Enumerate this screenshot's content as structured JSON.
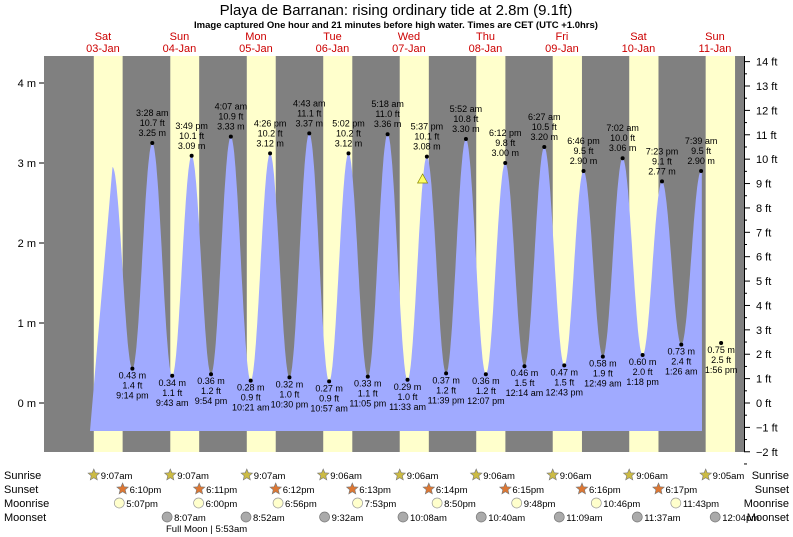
{
  "chart_data": {
    "type": "area",
    "title": "Playa de Barranan: rising  ordinary tide at 2.8m (9.1ft)",
    "subtitle": "Image captured One hour and 21 minutes before high water. Times are CET (UTC +1.0hrs)",
    "days": [
      {
        "dow": "Sat",
        "date": "03-Jan"
      },
      {
        "dow": "Sun",
        "date": "04-Jan"
      },
      {
        "dow": "Mon",
        "date": "05-Jan"
      },
      {
        "dow": "Tue",
        "date": "06-Jan"
      },
      {
        "dow": "Wed",
        "date": "07-Jan"
      },
      {
        "dow": "Thu",
        "date": "08-Jan"
      },
      {
        "dow": "Fri",
        "date": "09-Jan"
      },
      {
        "dow": "Sat",
        "date": "10-Jan"
      },
      {
        "dow": "Sun",
        "date": "11-Jan"
      }
    ],
    "y_left_range_m": [
      -0.6,
      4.4
    ],
    "y_left_ticks": [
      {
        "v": 0,
        "label": "0 m"
      },
      {
        "v": 1,
        "label": "1 m"
      },
      {
        "v": 2,
        "label": "2 m"
      },
      {
        "v": 3,
        "label": "3 m"
      },
      {
        "v": 4,
        "label": "4 m"
      }
    ],
    "y_right_ticks_ft": [
      {
        "v": -2,
        "label": "−2 ft"
      },
      {
        "v": -1,
        "label": "−1 ft"
      },
      {
        "v": 0,
        "label": "0 ft"
      },
      {
        "v": 1,
        "label": "1 ft"
      },
      {
        "v": 2,
        "label": "2 ft"
      },
      {
        "v": 3,
        "label": "3 ft"
      },
      {
        "v": 4,
        "label": "4 ft"
      },
      {
        "v": 5,
        "label": "5 ft"
      },
      {
        "v": 6,
        "label": "6 ft"
      },
      {
        "v": 7,
        "label": "7 ft"
      },
      {
        "v": 8,
        "label": "8 ft"
      },
      {
        "v": 9,
        "label": "9 ft"
      },
      {
        "v": 10,
        "label": "10 ft"
      },
      {
        "v": 11,
        "label": "11 ft"
      },
      {
        "v": 12,
        "label": "12 ft"
      },
      {
        "v": 13,
        "label": "13 ft"
      },
      {
        "v": 14,
        "label": "14 ft"
      }
    ],
    "tides": [
      {
        "kind": "low",
        "day": 0,
        "hours": 21.23,
        "m": 0.43,
        "time": "9:14 pm",
        "m_text": "0.43 m",
        "ft_text": "1.4 ft"
      },
      {
        "kind": "high",
        "day": 1,
        "hours": 3.47,
        "m": 3.25,
        "time": "3:28 am",
        "m_text": "3.25 m",
        "ft_text": "10.7 ft"
      },
      {
        "kind": "low",
        "day": 1,
        "hours": 9.72,
        "m": 0.34,
        "time": "9:43 am",
        "m_text": "0.34 m",
        "ft_text": "1.1 ft"
      },
      {
        "kind": "high",
        "day": 1,
        "hours": 15.82,
        "m": 3.09,
        "time": "3:49 pm",
        "m_text": "3.09 m",
        "ft_text": "10.1 ft"
      },
      {
        "kind": "low",
        "day": 1,
        "hours": 21.9,
        "m": 0.36,
        "time": "9:54 pm",
        "m_text": "0.36 m",
        "ft_text": "1.2 ft"
      },
      {
        "kind": "high",
        "day": 2,
        "hours": 4.12,
        "m": 3.33,
        "time": "4:07 am",
        "m_text": "3.33 m",
        "ft_text": "10.9 ft"
      },
      {
        "kind": "low",
        "day": 2,
        "hours": 10.35,
        "m": 0.28,
        "time": "10:21 am",
        "m_text": "0.28 m",
        "ft_text": "0.9 ft"
      },
      {
        "kind": "high",
        "day": 2,
        "hours": 16.43,
        "m": 3.12,
        "time": "4:26 pm",
        "m_text": "3.12 m",
        "ft_text": "10.2 ft"
      },
      {
        "kind": "low",
        "day": 2,
        "hours": 22.5,
        "m": 0.32,
        "time": "10:30 pm",
        "m_text": "0.32 m",
        "ft_text": "1.0 ft"
      },
      {
        "kind": "high",
        "day": 3,
        "hours": 4.72,
        "m": 3.37,
        "time": "4:43 am",
        "m_text": "3.37 m",
        "ft_text": "11.1 ft"
      },
      {
        "kind": "low",
        "day": 3,
        "hours": 10.95,
        "m": 0.27,
        "time": "10:57 am",
        "m_text": "0.27 m",
        "ft_text": "0.9 ft"
      },
      {
        "kind": "high",
        "day": 3,
        "hours": 17.03,
        "m": 3.12,
        "time": "5:02 pm",
        "m_text": "3.12 m",
        "ft_text": "10.2 ft"
      },
      {
        "kind": "low",
        "day": 3,
        "hours": 23.08,
        "m": 0.33,
        "time": "11:05 pm",
        "m_text": "0.33 m",
        "ft_text": "1.1 ft"
      },
      {
        "kind": "high",
        "day": 4,
        "hours": 5.3,
        "m": 3.36,
        "time": "5:18 am",
        "m_text": "3.36 m",
        "ft_text": "11.0 ft"
      },
      {
        "kind": "low",
        "day": 4,
        "hours": 11.55,
        "m": 0.29,
        "time": "11:33 am",
        "m_text": "0.29 m",
        "ft_text": "1.0 ft"
      },
      {
        "kind": "high",
        "day": 4,
        "hours": 17.62,
        "m": 3.08,
        "time": "5:37 pm",
        "m_text": "3.08 m",
        "ft_text": "10.1 ft"
      },
      {
        "kind": "low",
        "day": 4,
        "hours": 23.65,
        "m": 0.37,
        "time": "11:39 pm",
        "m_text": "0.37 m",
        "ft_text": "1.2 ft"
      },
      {
        "kind": "high",
        "day": 5,
        "hours": 5.87,
        "m": 3.3,
        "time": "5:52 am",
        "m_text": "3.30 m",
        "ft_text": "10.8 ft"
      },
      {
        "kind": "low",
        "day": 5,
        "hours": 12.12,
        "m": 0.36,
        "time": "12:07 pm",
        "m_text": "0.36 m",
        "ft_text": "1.2 ft"
      },
      {
        "kind": "high",
        "day": 5,
        "hours": 18.2,
        "m": 3.0,
        "time": "6:12 pm",
        "m_text": "3.00 m",
        "ft_text": "9.8 ft"
      },
      {
        "kind": "low",
        "day": 6,
        "hours": 0.23,
        "m": 0.46,
        "time": "12:14 am",
        "m_text": "0.46 m",
        "ft_text": "1.5 ft"
      },
      {
        "kind": "high",
        "day": 6,
        "hours": 6.45,
        "m": 3.2,
        "time": "6:27 am",
        "m_text": "3.20 m",
        "ft_text": "10.5 ft"
      },
      {
        "kind": "low",
        "day": 6,
        "hours": 12.72,
        "m": 0.47,
        "time": "12:43 pm",
        "m_text": "0.47 m",
        "ft_text": "1.5 ft"
      },
      {
        "kind": "high",
        "day": 6,
        "hours": 18.77,
        "m": 2.9,
        "time": "6:46 pm",
        "m_text": "2.90 m",
        "ft_text": "9.5 ft"
      },
      {
        "kind": "low",
        "day": 7,
        "hours": 0.82,
        "m": 0.58,
        "time": "12:49 am",
        "m_text": "0.58 m",
        "ft_text": "1.9 ft"
      },
      {
        "kind": "high",
        "day": 7,
        "hours": 7.03,
        "m": 3.06,
        "time": "7:02 am",
        "m_text": "3.06 m",
        "ft_text": "10.0 ft"
      },
      {
        "kind": "low",
        "day": 7,
        "hours": 13.3,
        "m": 0.6,
        "time": "1:18 pm",
        "m_text": "0.60 m",
        "ft_text": "2.0 ft"
      },
      {
        "kind": "high",
        "day": 7,
        "hours": 19.38,
        "m": 2.77,
        "time": "7:23 pm",
        "m_text": "2.77 m",
        "ft_text": "9.1 ft"
      },
      {
        "kind": "low",
        "day": 8,
        "hours": 1.43,
        "m": 0.73,
        "time": "1:26 am",
        "m_text": "0.73 m",
        "ft_text": "2.4 ft"
      },
      {
        "kind": "high",
        "day": 8,
        "hours": 7.65,
        "m": 2.9,
        "time": "7:39 am",
        "m_text": "2.90 m",
        "ft_text": "9.5 ft"
      },
      {
        "kind": "low",
        "day": 8,
        "hours": 13.93,
        "m": 0.75,
        "time": "1:56 pm",
        "m_text": "0.75 m",
        "ft_text": "2.5 ft"
      }
    ],
    "current_marker": {
      "day": 4,
      "hours": 16.27,
      "m": 2.8
    },
    "daylight": [
      {
        "rise": 9.12,
        "set": 18.17
      },
      {
        "rise": 9.12,
        "set": 18.18
      },
      {
        "rise": 9.12,
        "set": 18.2
      },
      {
        "rise": 9.1,
        "set": 18.22
      },
      {
        "rise": 9.1,
        "set": 18.23
      },
      {
        "rise": 9.1,
        "set": 18.25
      },
      {
        "rise": 9.1,
        "set": 18.27
      },
      {
        "rise": 9.1,
        "set": 18.28
      },
      {
        "rise": 9.08,
        "set": 18.3
      }
    ],
    "events": {
      "labels": {
        "sunrise": "Sunrise",
        "sunset": "Sunset",
        "moonrise": "Moonrise",
        "moonset": "Moonset"
      },
      "sunrise": [
        {
          "day": 0,
          "hours": 9.12,
          "text": "9:07am"
        },
        {
          "day": 1,
          "hours": 9.12,
          "text": "9:07am"
        },
        {
          "day": 2,
          "hours": 9.12,
          "text": "9:07am"
        },
        {
          "day": 3,
          "hours": 9.1,
          "text": "9:06am"
        },
        {
          "day": 4,
          "hours": 9.1,
          "text": "9:06am"
        },
        {
          "day": 5,
          "hours": 9.1,
          "text": "9:06am"
        },
        {
          "day": 6,
          "hours": 9.1,
          "text": "9:06am"
        },
        {
          "day": 7,
          "hours": 9.1,
          "text": "9:06am"
        },
        {
          "day": 8,
          "hours": 9.08,
          "text": "9:05am"
        }
      ],
      "sunset": [
        {
          "day": 0,
          "hours": 18.17,
          "text": "6:10pm"
        },
        {
          "day": 1,
          "hours": 18.18,
          "text": "6:11pm"
        },
        {
          "day": 2,
          "hours": 18.2,
          "text": "6:12pm"
        },
        {
          "day": 3,
          "hours": 18.22,
          "text": "6:13pm"
        },
        {
          "day": 4,
          "hours": 18.23,
          "text": "6:14pm"
        },
        {
          "day": 5,
          "hours": 18.25,
          "text": "6:15pm"
        },
        {
          "day": 6,
          "hours": 18.27,
          "text": "6:16pm"
        },
        {
          "day": 7,
          "hours": 18.28,
          "text": "6:17pm"
        }
      ],
      "moonrise": [
        {
          "day": 0,
          "hours": 17.12,
          "text": "5:07pm"
        },
        {
          "day": 1,
          "hours": 18.0,
          "text": "6:00pm"
        },
        {
          "day": 2,
          "hours": 18.93,
          "text": "6:56pm"
        },
        {
          "day": 3,
          "hours": 19.88,
          "text": "7:53pm"
        },
        {
          "day": 4,
          "hours": 20.83,
          "text": "8:50pm"
        },
        {
          "day": 5,
          "hours": 21.8,
          "text": "9:48pm"
        },
        {
          "day": 6,
          "hours": 22.77,
          "text": "10:46pm"
        },
        {
          "day": 7,
          "hours": 23.72,
          "text": "11:43pm"
        }
      ],
      "moonset": [
        {
          "day": 1,
          "hours": 8.12,
          "text": "8:07am"
        },
        {
          "day": 2,
          "hours": 8.87,
          "text": "8:52am"
        },
        {
          "day": 3,
          "hours": 9.53,
          "text": "9:32am"
        },
        {
          "day": 4,
          "hours": 10.13,
          "text": "10:08am"
        },
        {
          "day": 5,
          "hours": 10.67,
          "text": "10:40am"
        },
        {
          "day": 6,
          "hours": 11.15,
          "text": "11:09am"
        },
        {
          "day": 7,
          "hours": 11.62,
          "text": "11:37am"
        },
        {
          "day": 8,
          "hours": 12.07,
          "text": "12:04pm"
        }
      ],
      "full_moon": "Full Moon | 5:53am"
    },
    "colors": {
      "night": "#808080",
      "day": "#ffffcc",
      "water": "#a0aaff",
      "day_label": "#cc0000",
      "sun": "#ccbb44",
      "sunset": "#dd7733",
      "moonrise": "#ffffcc",
      "moonset": "#aaaaaa",
      "marker": "#ffff66"
    }
  }
}
